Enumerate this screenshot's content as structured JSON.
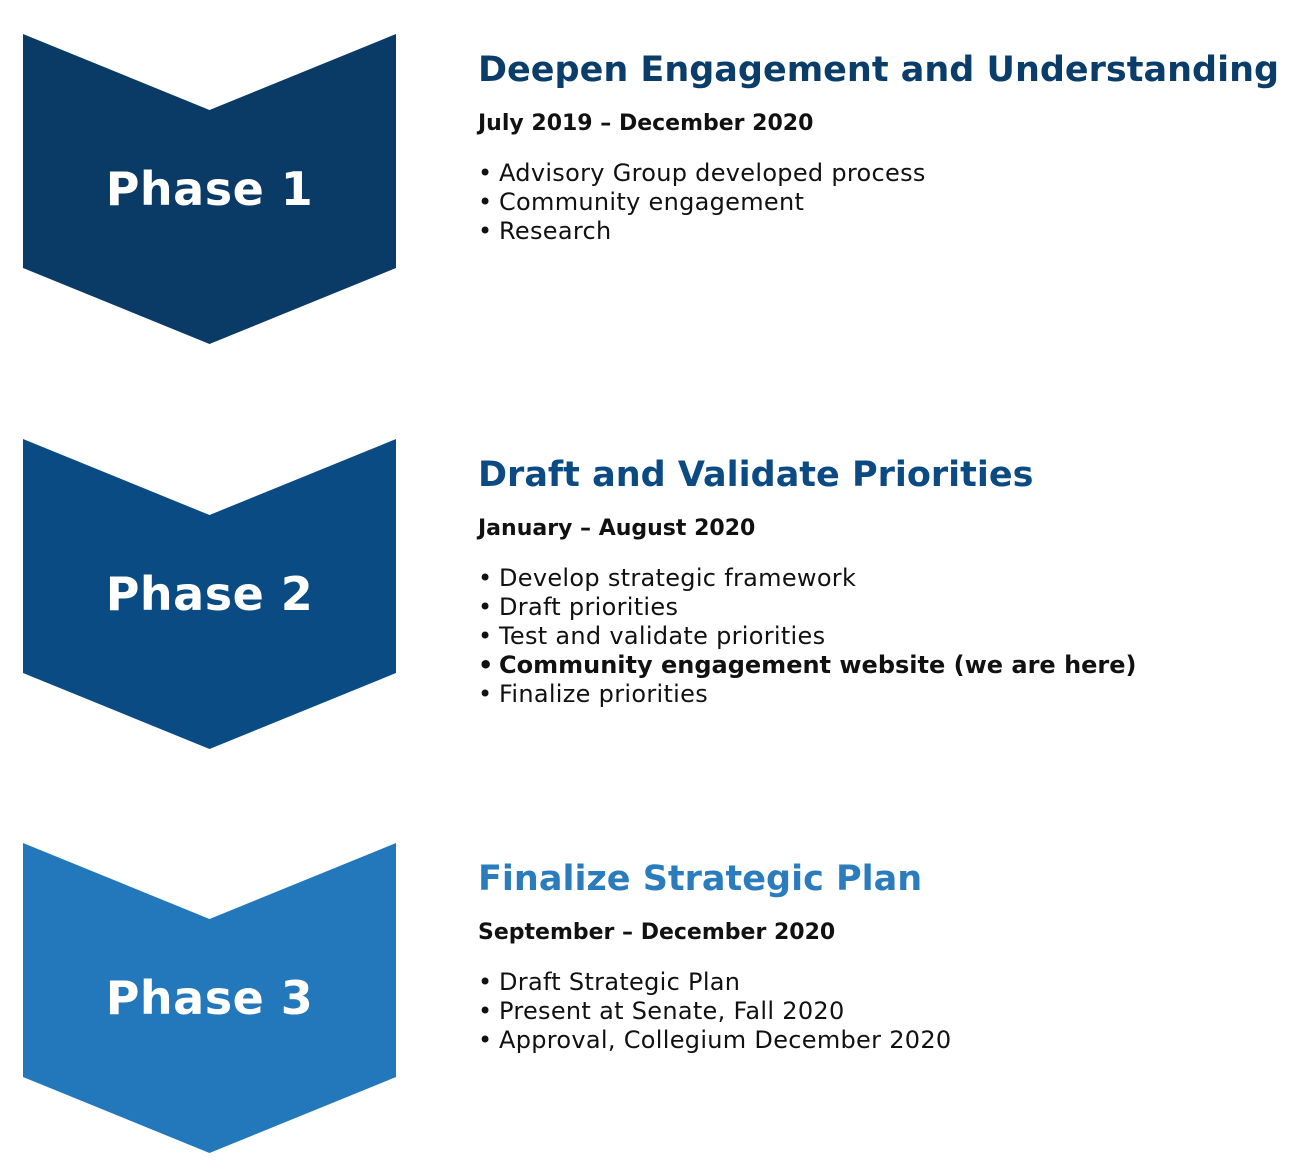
{
  "phases": [
    {
      "label": "Phase 1",
      "title": "Deepen Engagement and Understanding",
      "dates": "July 2019 – December 2020",
      "color": "#0a3a66",
      "title_color": "#0b3d6b",
      "bullets": [
        {
          "text": "Advisory Group developed process",
          "bold": false
        },
        {
          "text": "Community engagement",
          "bold": false
        },
        {
          "text": "Research",
          "bold": false
        }
      ]
    },
    {
      "label": "Phase 2",
      "title": "Draft and Validate Priorities",
      "dates": "January – August 2020",
      "color": "#0a4b84",
      "title_color": "#0b4a82",
      "bullets": [
        {
          "text": "Develop strategic framework",
          "bold": false
        },
        {
          "text": "Draft priorities",
          "bold": false
        },
        {
          "text": "Test and validate priorities",
          "bold": false
        },
        {
          "text": "Community engagement website (we are here)",
          "bold": true
        },
        {
          "text": "Finalize priorities",
          "bold": false
        }
      ]
    },
    {
      "label": "Phase 3",
      "title": "Finalize Strategic Plan",
      "dates": "September – December 2020",
      "color": "#2278ba",
      "title_color": "#2a7cbd",
      "bullets": [
        {
          "text": "Draft Strategic Plan",
          "bold": false
        },
        {
          "text": "Present at Senate, Fall 2020",
          "bold": false
        },
        {
          "text": "Approval, Collegium December 2020",
          "bold": false
        }
      ]
    }
  ]
}
